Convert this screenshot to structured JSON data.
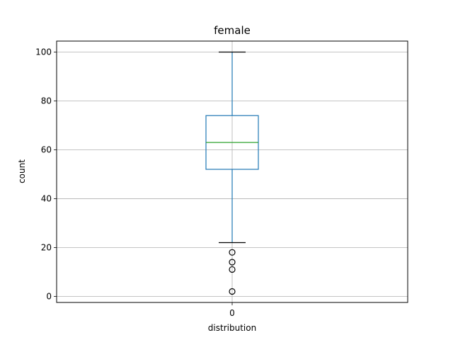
{
  "chart_data": {
    "type": "boxplot",
    "title": "female",
    "xlabel": "distribution",
    "ylabel": "count",
    "categories": [
      "0"
    ],
    "ylim": [
      -2.5,
      104.5
    ],
    "yticks": [
      0,
      20,
      40,
      60,
      80,
      100
    ],
    "ytick_labels": [
      "0",
      "20",
      "40",
      "60",
      "80",
      "100"
    ],
    "grid": true,
    "boxes": [
      {
        "category": "0",
        "whisker_low": 22,
        "q1": 52,
        "median": 63,
        "q3": 74,
        "whisker_high": 100,
        "fliers": [
          18,
          14,
          11,
          2
        ]
      }
    ],
    "colors": {
      "box": "#1f77b4",
      "median": "#2ca02c",
      "whisker_cap": "#000000",
      "grid": "#b0b0b0"
    }
  }
}
